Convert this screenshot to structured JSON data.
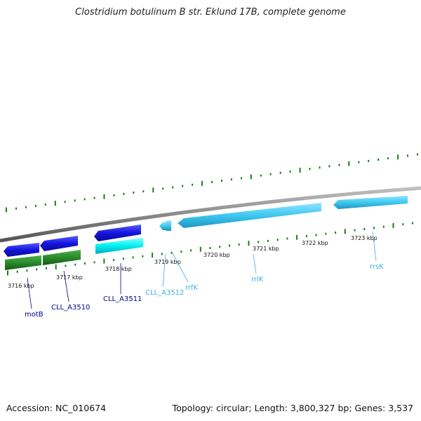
{
  "title": "Clostridium botulinum B str. Eklund 17B, complete genome",
  "footer": {
    "accession": "Accession: NC_010674",
    "topology": "Topology: circular; Length: 3,800,327 bp; Genes: 3,537"
  },
  "colors": {
    "backbone": "#8a8a8a",
    "ticks": "#1e7a1e",
    "forward_gene": "#1515e0",
    "reverse_gene": "#3ec8f0",
    "cds_green": "#2a8a2a",
    "cds_cyan": "#00f0f0",
    "label_dark": "#00008b",
    "label_light": "#3ab0e0"
  },
  "axis_labels": [
    {
      "text": "3716 kbp"
    },
    {
      "text": "3717 kbp"
    },
    {
      "text": "3718 kbp"
    },
    {
      "text": "3719 kbp"
    },
    {
      "text": "3720 kbp"
    },
    {
      "text": "3721 kbp"
    },
    {
      "text": "3722 kbp"
    },
    {
      "text": "3723 kbp"
    }
  ],
  "features": [
    {
      "name": "motB",
      "color_key": "label_dark"
    },
    {
      "name": "CLL_A3510",
      "color_key": "label_dark"
    },
    {
      "name": "CLL_A3511",
      "color_key": "label_dark"
    },
    {
      "name": "CLL_A3512",
      "color_key": "label_light"
    },
    {
      "name": "rrfK",
      "color_key": "label_light"
    },
    {
      "name": "rrlK",
      "color_key": "label_light"
    },
    {
      "name": "rrsK",
      "color_key": "label_light"
    }
  ]
}
